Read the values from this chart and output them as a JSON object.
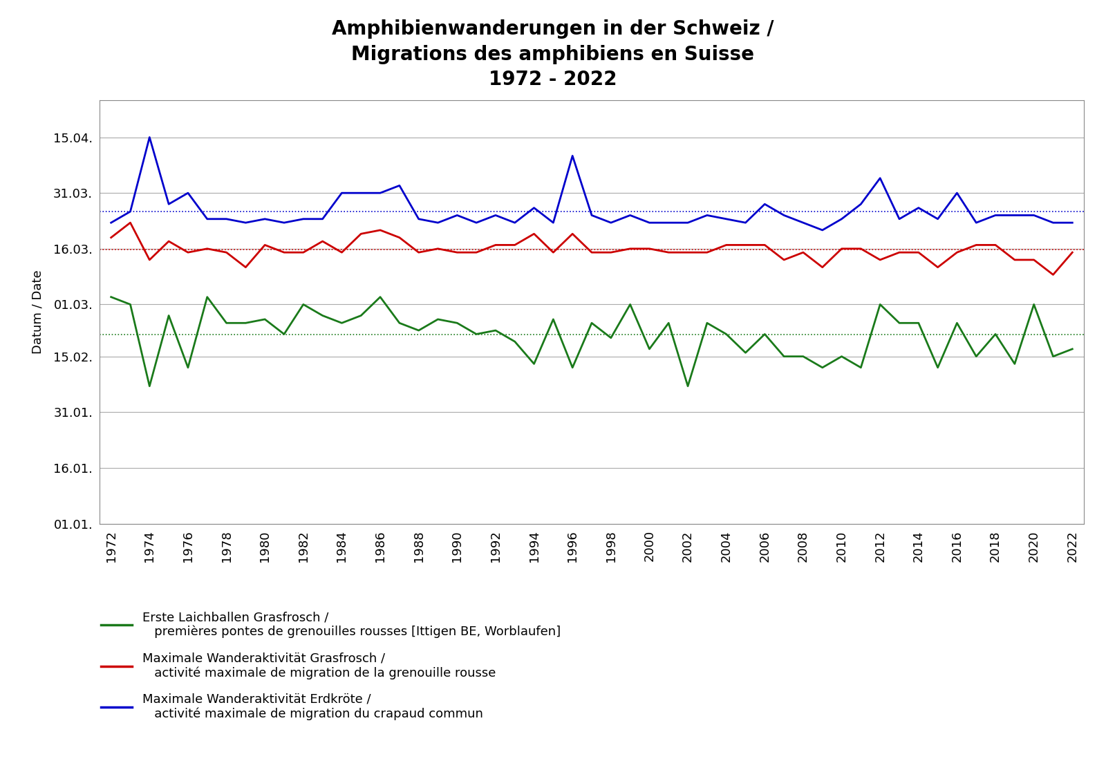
{
  "title_line1": "Amphibienwanderungen in der Schweiz /",
  "title_line2": "Migrations des amphibiens en Suisse",
  "title_line3": "1972 - 2022",
  "ylabel": "Datum / Date",
  "legend": [
    {
      "label": "Erste Laichballen Grasfrosch /\n   premières pontes de grenouilles rousses [Ittigen BE, Worblaufen]",
      "color": "#1a7a1a"
    },
    {
      "label": "Maximale Wanderaktivität Grasfrosch /\n   activité maximale de migration de la grenouille rousse",
      "color": "#cc0000"
    },
    {
      "label": "Maximale Wanderaktivität Erdkröte /\n   activité maximale de migration du crapaud commun",
      "color": "#0000cc"
    }
  ],
  "years": [
    1972,
    1973,
    1974,
    1975,
    1976,
    1977,
    1978,
    1979,
    1980,
    1981,
    1982,
    1983,
    1984,
    1985,
    1986,
    1987,
    1988,
    1989,
    1990,
    1991,
    1992,
    1993,
    1994,
    1995,
    1996,
    1997,
    1998,
    1999,
    2000,
    2001,
    2002,
    2003,
    2004,
    2005,
    2006,
    2007,
    2008,
    2009,
    2010,
    2011,
    2012,
    2013,
    2014,
    2015,
    2016,
    2017,
    2018,
    2019,
    2020,
    2021,
    2022
  ],
  "green_doy": [
    62,
    60,
    38,
    57,
    43,
    62,
    55,
    55,
    56,
    52,
    60,
    57,
    55,
    57,
    62,
    55,
    53,
    56,
    55,
    52,
    53,
    50,
    44,
    56,
    43,
    55,
    51,
    60,
    48,
    55,
    38,
    55,
    52,
    47,
    52,
    46,
    46,
    43,
    46,
    43,
    60,
    55,
    55,
    43,
    55,
    46,
    52,
    44,
    60,
    46,
    48
  ],
  "red_doy": [
    78,
    82,
    72,
    77,
    74,
    75,
    74,
    70,
    76,
    74,
    74,
    77,
    74,
    79,
    80,
    78,
    74,
    75,
    74,
    74,
    76,
    76,
    79,
    74,
    79,
    74,
    74,
    75,
    75,
    74,
    74,
    74,
    76,
    76,
    76,
    72,
    74,
    70,
    75,
    75,
    72,
    74,
    74,
    70,
    74,
    76,
    76,
    72,
    72,
    68,
    74
  ],
  "blue_doy": [
    82,
    85,
    105,
    87,
    90,
    83,
    83,
    82,
    83,
    82,
    83,
    83,
    90,
    90,
    90,
    92,
    83,
    82,
    84,
    82,
    84,
    82,
    86,
    82,
    100,
    84,
    82,
    84,
    82,
    82,
    82,
    84,
    83,
    82,
    87,
    84,
    82,
    80,
    83,
    87,
    94,
    83,
    86,
    83,
    90,
    82,
    84,
    84,
    84,
    82,
    82
  ],
  "ytick_labels": [
    "01.01.",
    "16.01.",
    "31.01.",
    "15.02.",
    "01.03.",
    "16.03.",
    "31.03.",
    "15.04."
  ],
  "ytick_doys": [
    1,
    16,
    31,
    46,
    60,
    75,
    90,
    105
  ],
  "ymin": 1,
  "ymax": 115,
  "background_color": "#ffffff",
  "plot_bg_color": "#ffffff",
  "grid_color": "#aaaaaa"
}
